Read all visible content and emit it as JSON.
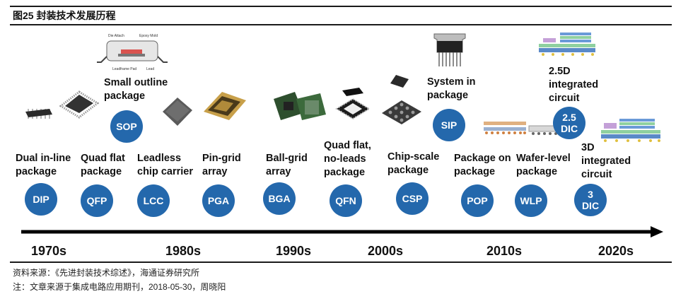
{
  "figure": {
    "title": "图25 封装技术发展历程"
  },
  "packages": {
    "dip": {
      "label": [
        "Dual in-line",
        "package"
      ],
      "badge": "DIP"
    },
    "qfp": {
      "label": [
        "Quad flat",
        "package"
      ],
      "badge": "QFP"
    },
    "lcc": {
      "label": [
        "Leadless",
        "chip carrier"
      ],
      "badge": "LCC"
    },
    "pga": {
      "label": [
        "Pin-grid",
        "array"
      ],
      "badge": "PGA"
    },
    "sop": {
      "label": [
        "Small outline",
        "package"
      ],
      "badge": "SOP"
    },
    "bga": {
      "label": [
        "Ball-grid",
        "array"
      ],
      "badge": "BGA"
    },
    "qfn": {
      "label": [
        "Quad flat,",
        "no-leads",
        "package"
      ],
      "badge": "QFN"
    },
    "csp": {
      "label": [
        "Chip-scale",
        "package"
      ],
      "badge": "CSP"
    },
    "sip": {
      "label": [
        "System in",
        "package"
      ],
      "badge": "SIP"
    },
    "pop": {
      "label": [
        "Package on",
        "package"
      ],
      "badge": "POP"
    },
    "wlp": {
      "label": [
        "Wafer-level",
        "package"
      ],
      "badge": "WLP"
    },
    "dic25": {
      "label": [
        "2.5D",
        "integrated",
        "circuit"
      ],
      "badge": [
        "2.5",
        "DIC"
      ]
    },
    "dic3": {
      "label": [
        "3D",
        "integrated",
        "circuit"
      ],
      "badge": [
        "3",
        "DIC"
      ]
    }
  },
  "timeline": {
    "decades": [
      "1970s",
      "1980s",
      "1990s",
      "2000s",
      "2010s",
      "2020s"
    ]
  },
  "footer": {
    "source": "资料来源：《先进封装技术综述》，海通证券研究所",
    "note": "注：文章来源于集成电路应用期刊，2018-05-30，周晓阳"
  },
  "colors": {
    "badge": "#2468ac",
    "text": "#111111",
    "rule": "#1a1a1a"
  }
}
